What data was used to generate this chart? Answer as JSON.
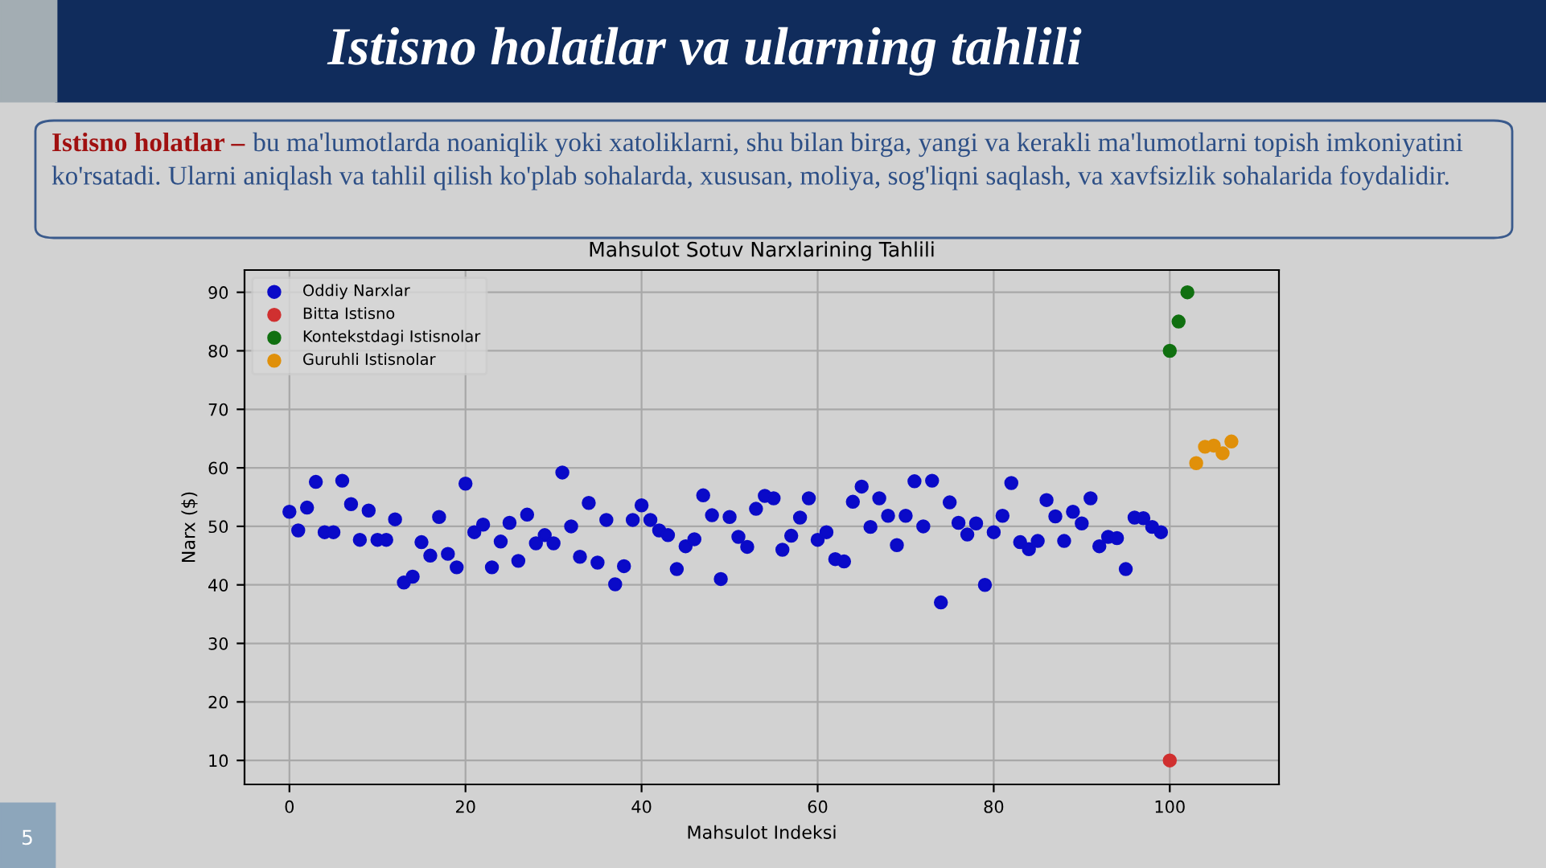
{
  "chart_data": {
    "type": "scatter",
    "title": "Mahsulot Sotuv Narxlarining Tahlili",
    "xlabel": "Mahsulot Indeksi",
    "ylabel": "Narx ($)",
    "annotations": [
      "Istisno holatlar va ularning tahlili",
      "Istisno holatlar –",
      "bu ma'lumotlarda noaniqlik yoki xatoliklarni, shu bilan birga, yangi va kerakli ma'lumotlarni topish imkoniyatini ko'rsatadi. Ularni aniqlash va tahlil qilish ko'plab sohalarda, xususan, moliya, sog'liqni saqlash, va xavfsizlik sohalarida foydalidir.",
      "5"
    ],
    "series": [
      {
        "name": "Oddiy Narxlar",
        "color": "#0a0ac8",
        "x": [
          0,
          1,
          2,
          3,
          4,
          5,
          6,
          7,
          8,
          9,
          10,
          11,
          12,
          13,
          14,
          15,
          16,
          17,
          18,
          19,
          20,
          21,
          22,
          23,
          24,
          25,
          26,
          27,
          28,
          29,
          30,
          31,
          32,
          33,
          34,
          35,
          36,
          37,
          38,
          39,
          40,
          41,
          42,
          43,
          44,
          45,
          46,
          47,
          48,
          49,
          50,
          51,
          52,
          53,
          54,
          55,
          56,
          57,
          58,
          59,
          60,
          61,
          62,
          63,
          64,
          65,
          66,
          67,
          68,
          69,
          70,
          71,
          72,
          73,
          74,
          75,
          76,
          77,
          78,
          79,
          80,
          81,
          82,
          83,
          84,
          85,
          86,
          87,
          88,
          89,
          90,
          91,
          92,
          93,
          94,
          95,
          96,
          97,
          98,
          99
        ],
        "values": [
          52.5,
          49.3,
          53.2,
          57.6,
          49,
          49,
          57.8,
          53.8,
          47.7,
          52.7,
          47.7,
          47.7,
          51.2,
          40.4,
          41.4,
          47.3,
          45,
          51.6,
          45.3,
          43,
          57.3,
          49,
          50.3,
          43,
          47.4,
          50.6,
          44.1,
          52,
          47.1,
          48.5,
          47.1,
          59.2,
          50,
          44.8,
          54,
          43.8,
          51.1,
          40.1,
          43.2,
          51.1,
          53.6,
          51.1,
          49.3,
          48.5,
          42.7,
          46.6,
          47.8,
          55.3,
          51.9,
          41,
          51.6,
          48.2,
          46.5,
          53,
          55.2,
          54.8,
          46,
          48.4,
          51.5,
          54.8,
          47.7,
          49,
          44.4,
          44,
          54.2,
          56.8,
          49.9,
          54.8,
          51.8,
          46.8,
          51.8,
          57.7,
          50,
          57.8,
          37,
          54.1,
          50.6,
          48.6,
          50.5,
          40,
          49,
          51.8,
          57.4,
          47.3,
          46.1,
          47.5,
          54.5,
          51.7,
          47.5,
          52.5,
          50.5,
          54.8,
          46.6,
          48.2,
          48,
          42.7,
          51.5,
          51.4,
          49.9,
          49
        ]
      },
      {
        "name": "Bitta Istisno",
        "color": "#d03030",
        "x": [
          100
        ],
        "values": [
          10
        ]
      },
      {
        "name": "Kontekstdagi Istisnolar",
        "color": "#107010",
        "x": [
          100,
          101,
          102
        ],
        "values": [
          80,
          85,
          90
        ]
      },
      {
        "name": "Guruhli Istisnolar",
        "color": "#e0900a",
        "x": [
          103,
          104,
          105,
          106,
          107
        ],
        "values": [
          60.8,
          63.6,
          63.8,
          62.5,
          64.5
        ]
      }
    ],
    "xlim": [
      -5.1,
      112.4
    ],
    "ylim": [
      5.9,
      93.8
    ],
    "xticks": [
      0,
      20,
      40,
      60,
      80,
      100
    ],
    "yticks": [
      10,
      20,
      30,
      40,
      50,
      60,
      70,
      80,
      90
    ],
    "grid": true,
    "legend": "top left",
    "marker": "circle"
  }
}
